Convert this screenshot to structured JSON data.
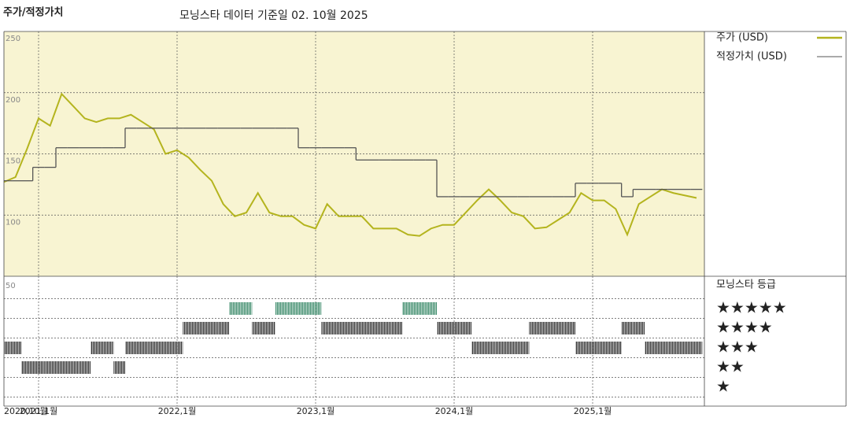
{
  "chart_data": [
    {
      "type": "line",
      "title": "주가/적정가치",
      "subtitle": "모닝스타 데이터 기준일 02. 10월 2025",
      "x": [
        "2020-10",
        "2020-11",
        "2020-12",
        "2021-01",
        "2021-02",
        "2021-03",
        "2021-04",
        "2021-05",
        "2021-06",
        "2021-07",
        "2021-08",
        "2021-09",
        "2021-10",
        "2021-11",
        "2021-12",
        "2022-01",
        "2022-02",
        "2022-03",
        "2022-04",
        "2022-05",
        "2022-06",
        "2022-07",
        "2022-08",
        "2022-09",
        "2022-10",
        "2022-11",
        "2022-12",
        "2023-01",
        "2023-02",
        "2023-03",
        "2023-04",
        "2023-05",
        "2023-06",
        "2023-07",
        "2023-08",
        "2023-09",
        "2023-10",
        "2023-11",
        "2023-12",
        "2024-01",
        "2024-02",
        "2024-03",
        "2024-04",
        "2024-05",
        "2024-06",
        "2024-07",
        "2024-08",
        "2024-09",
        "2024-10",
        "2024-11",
        "2024-12",
        "2025-01",
        "2025-02",
        "2025-03",
        "2025-04",
        "2025-05",
        "2025-06",
        "2025-07",
        "2025-08",
        "2025-09",
        "2025-10"
      ],
      "series": [
        {
          "name": "주가 (USD)",
          "color": "#b4b41e",
          "values": [
            127,
            131,
            154,
            179,
            173,
            199,
            189,
            179,
            176,
            179,
            179,
            182,
            176,
            170,
            150,
            153,
            147,
            137,
            128,
            109,
            99,
            102,
            118,
            102,
            99,
            99,
            92,
            89,
            109,
            99,
            99,
            99,
            89,
            89,
            89,
            84,
            83,
            89,
            92,
            92,
            102,
            112,
            121,
            112,
            102,
            99,
            89,
            90,
            96,
            102,
            118,
            112,
            112,
            105,
            84,
            109,
            115,
            121,
            118,
            116,
            114
          ]
        },
        {
          "name": "적정가치 (USD)",
          "color": "#555555",
          "step": true,
          "values": [
            128,
            128,
            128,
            139,
            139,
            155,
            155,
            155,
            155,
            155,
            155,
            171,
            171,
            171,
            171,
            171,
            171,
            171,
            171,
            171,
            171,
            171,
            171,
            171,
            171,
            171,
            155,
            155,
            155,
            155,
            155,
            145,
            145,
            145,
            145,
            145,
            145,
            145,
            115,
            115,
            115,
            115,
            115,
            115,
            115,
            115,
            115,
            115,
            115,
            115,
            126,
            126,
            126,
            126,
            115,
            121,
            121,
            121,
            121,
            121,
            121
          ]
        }
      ],
      "ylim": [
        50,
        250
      ],
      "yticks": [
        100,
        150,
        200,
        250
      ],
      "grid": true,
      "background": "#f8f4d2"
    },
    {
      "type": "rating",
      "title": "모닝스타 등급",
      "corner_label": "50",
      "x": [
        "2020-10",
        "2020-11",
        "2020-12",
        "2021-01",
        "2021-02",
        "2021-03",
        "2021-04",
        "2021-05",
        "2021-06",
        "2021-07",
        "2021-08",
        "2021-09",
        "2021-10",
        "2021-11",
        "2021-12",
        "2022-01",
        "2022-02",
        "2022-03",
        "2022-04",
        "2022-05",
        "2022-06",
        "2022-07",
        "2022-08",
        "2022-09",
        "2022-10",
        "2022-11",
        "2022-12",
        "2023-01",
        "2023-02",
        "2023-03",
        "2023-04",
        "2023-05",
        "2023-06",
        "2023-07",
        "2023-08",
        "2023-09",
        "2023-10",
        "2023-11",
        "2023-12",
        "2024-01",
        "2024-02",
        "2024-03",
        "2024-04",
        "2024-05",
        "2024-06",
        "2024-07",
        "2024-08",
        "2024-09",
        "2024-10",
        "2024-11",
        "2024-12",
        "2025-01",
        "2025-02",
        "2025-03",
        "2025-04",
        "2025-05",
        "2025-06",
        "2025-07",
        "2025-08",
        "2025-09",
        "2025-10"
      ],
      "values": [
        3,
        3,
        2,
        2,
        2,
        2,
        2,
        2,
        3,
        3,
        2,
        3,
        3,
        3,
        3,
        3,
        4,
        4,
        4,
        4,
        5,
        5,
        4,
        4,
        5,
        5,
        5,
        5,
        4,
        4,
        4,
        4,
        4,
        4,
        4,
        5,
        5,
        5,
        4,
        4,
        4,
        3,
        3,
        3,
        3,
        3,
        4,
        4,
        4,
        4,
        3,
        3,
        3,
        3,
        4,
        4,
        3,
        3,
        3,
        3,
        3
      ],
      "star_labels": [
        "★",
        "★★",
        "★★★",
        "★★★★",
        "★★★★★"
      ],
      "level_colors": [
        "#333333",
        "#333333",
        "#333333",
        "#333333",
        "#3d8b6b"
      ],
      "xticks": [
        {
          "value": "2020-10",
          "label": "2020,10월"
        },
        {
          "value": "2021-01",
          "label": "2021,1월"
        },
        {
          "value": "2022-01",
          "label": "2022,1월"
        },
        {
          "value": "2023-01",
          "label": "2023,1월"
        },
        {
          "value": "2024-01",
          "label": "2024,1월"
        },
        {
          "value": "2025-01",
          "label": "2025,1월"
        }
      ]
    }
  ]
}
